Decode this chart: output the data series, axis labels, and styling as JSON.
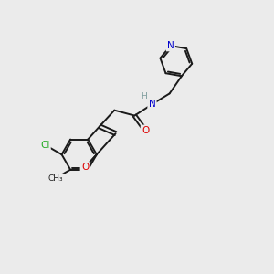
{
  "background_color": "#ebebeb",
  "bond_color": "#1a1a1a",
  "atom_colors": {
    "N": "#0000cc",
    "O": "#dd0000",
    "Cl": "#22aa22",
    "H": "#7a9a9a",
    "C": "#1a1a1a"
  },
  "figsize": [
    3.0,
    3.0
  ],
  "dpi": 100
}
